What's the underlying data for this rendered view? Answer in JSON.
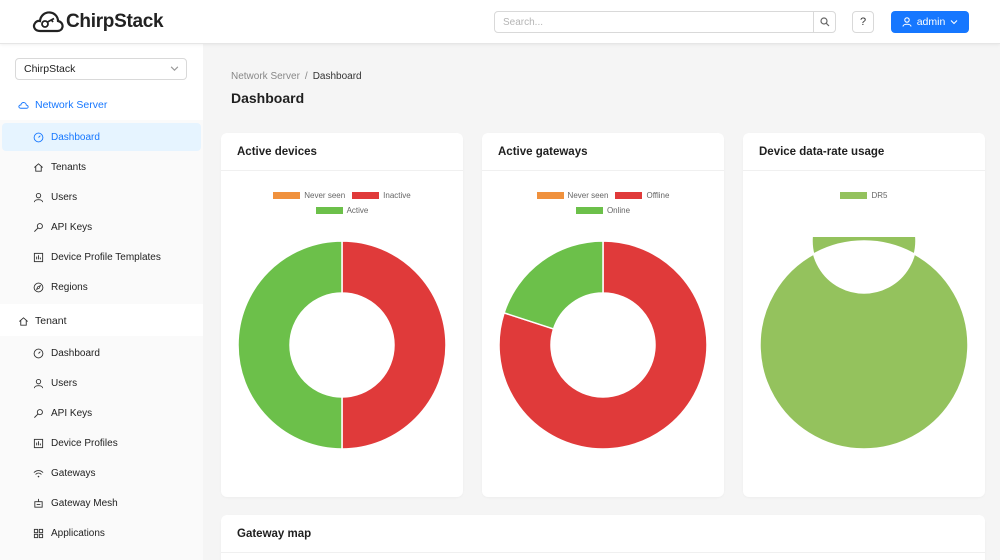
{
  "header": {
    "logo_text": "ChirpStack",
    "search_placeholder": "Search...",
    "help_label": "?",
    "user_label": "admin"
  },
  "sidebar": {
    "tenant_select": "ChirpStack",
    "network_server": {
      "label": "Network Server",
      "items": [
        {
          "label": "Dashboard",
          "icon": "dashboard-icon"
        },
        {
          "label": "Tenants",
          "icon": "home-icon"
        },
        {
          "label": "Users",
          "icon": "user-icon"
        },
        {
          "label": "API Keys",
          "icon": "key-icon"
        },
        {
          "label": "Device Profile Templates",
          "icon": "template-icon"
        },
        {
          "label": "Regions",
          "icon": "compass-icon"
        }
      ]
    },
    "tenant": {
      "label": "Tenant",
      "items": [
        {
          "label": "Dashboard",
          "icon": "dashboard-icon"
        },
        {
          "label": "Users",
          "icon": "user-icon"
        },
        {
          "label": "API Keys",
          "icon": "key-icon"
        },
        {
          "label": "Device Profiles",
          "icon": "template-icon"
        },
        {
          "label": "Gateways",
          "icon": "wifi-icon"
        },
        {
          "label": "Gateway Mesh",
          "icon": "mesh-icon"
        },
        {
          "label": "Applications",
          "icon": "apps-icon"
        }
      ]
    }
  },
  "breadcrumb": {
    "parent": "Network Server",
    "separator": "/",
    "current": "Dashboard"
  },
  "page_title": "Dashboard",
  "colors": {
    "never_seen": "#f0913d",
    "inactive": "#e03a3a",
    "active": "#6cc04a",
    "dr5": "#94c25d",
    "accent": "#1677ff"
  },
  "cards": {
    "active_devices": {
      "title": "Active devices"
    },
    "active_gateways": {
      "title": "Active gateways"
    },
    "datarate": {
      "title": "Device data-rate usage"
    },
    "gateway_map": {
      "title": "Gateway map"
    }
  },
  "chart_data": [
    {
      "type": "pie",
      "title": "Active devices",
      "labels": [
        "Never seen",
        "Inactive",
        "Active"
      ],
      "values": [
        0,
        1,
        1
      ],
      "colors": [
        "#f0913d",
        "#e03a3a",
        "#6cc04a"
      ],
      "legend": "top"
    },
    {
      "type": "pie",
      "title": "Active gateways",
      "labels": [
        "Never seen",
        "Offline",
        "Online"
      ],
      "values": [
        0,
        4,
        1
      ],
      "colors": [
        "#f0913d",
        "#e03a3a",
        "#6cc04a"
      ],
      "legend": "top"
    },
    {
      "type": "pie",
      "title": "Device data-rate usage",
      "labels": [
        "DR5"
      ],
      "values": [
        1
      ],
      "colors": [
        "#94c25d"
      ],
      "legend": "top"
    }
  ]
}
